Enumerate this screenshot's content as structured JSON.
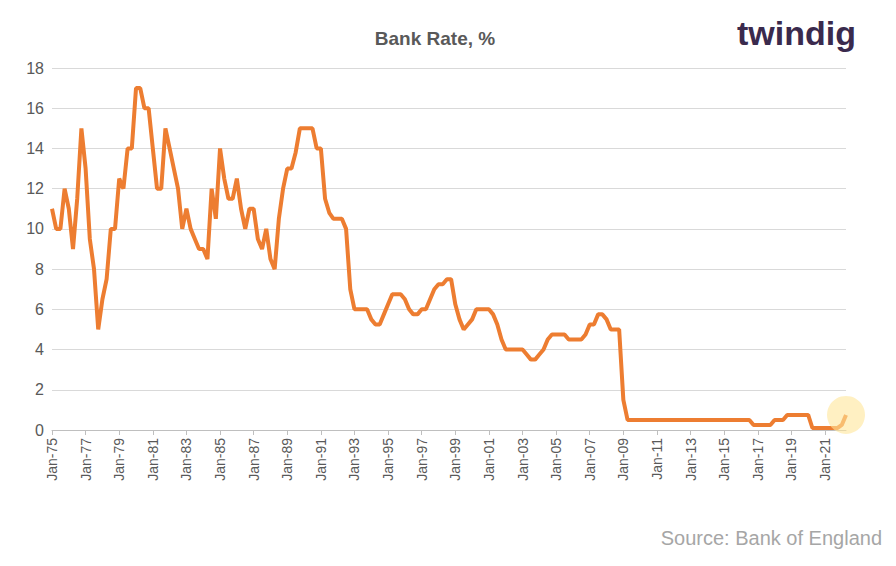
{
  "chart_data": {
    "type": "line",
    "title": "Bank Rate, %",
    "categories": [
      "Jan-75",
      null,
      null,
      null,
      null,
      null,
      null,
      null,
      "Jan-77",
      null,
      null,
      null,
      null,
      null,
      null,
      null,
      "Jan-79",
      null,
      null,
      null,
      null,
      null,
      null,
      null,
      "Jan-81",
      null,
      null,
      null,
      null,
      null,
      null,
      null,
      "Jan-83",
      null,
      null,
      null,
      null,
      null,
      null,
      null,
      "Jan-85",
      null,
      null,
      null,
      null,
      null,
      null,
      null,
      "Jan-87",
      null,
      null,
      null,
      null,
      null,
      null,
      null,
      "Jan-89",
      null,
      null,
      null,
      null,
      null,
      null,
      null,
      "Jan-91",
      null,
      null,
      null,
      null,
      null,
      null,
      null,
      "Jan-93",
      null,
      null,
      null,
      null,
      null,
      null,
      null,
      "Jan-95",
      null,
      null,
      null,
      null,
      null,
      null,
      null,
      "Jan-97",
      null,
      null,
      null,
      null,
      null,
      null,
      null,
      "Jan-99",
      null,
      null,
      null,
      null,
      null,
      null,
      null,
      "Jan-01",
      null,
      null,
      null,
      null,
      null,
      null,
      null,
      "Jan-03",
      null,
      null,
      null,
      null,
      null,
      null,
      null,
      "Jan-05",
      null,
      null,
      null,
      null,
      null,
      null,
      null,
      "Jan-07",
      null,
      null,
      null,
      null,
      null,
      null,
      null,
      "Jan-09",
      null,
      null,
      null,
      null,
      null,
      null,
      null,
      "Jan-11",
      null,
      null,
      null,
      null,
      null,
      null,
      null,
      "Jan-13",
      null,
      null,
      null,
      null,
      null,
      null,
      null,
      "Jan-15",
      null,
      null,
      null,
      null,
      null,
      null,
      null,
      "Jan-17",
      null,
      null,
      null,
      null,
      null,
      null,
      null,
      "Jan-19",
      null,
      null,
      null,
      null,
      null,
      null,
      null,
      "Jan-21",
      null,
      null,
      null,
      null,
      null
    ],
    "values": [
      11.0,
      10.0,
      10.0,
      12.0,
      11.0,
      9.0,
      11.5,
      15.0,
      13.0,
      9.5,
      8.0,
      5.0,
      6.5,
      7.5,
      10.0,
      10.0,
      12.5,
      12.0,
      14.0,
      14.0,
      17.0,
      17.0,
      16.0,
      16.0,
      14.0,
      12.0,
      12.0,
      15.0,
      14.0,
      13.0,
      12.0,
      10.0,
      11.0,
      10.0,
      9.5,
      9.0,
      9.0,
      8.5,
      12.0,
      10.5,
      14.0,
      12.5,
      11.5,
      11.5,
      12.5,
      11.0,
      10.0,
      11.0,
      11.0,
      9.5,
      9.0,
      10.0,
      8.5,
      8.0,
      10.5,
      12.0,
      13.0,
      13.0,
      13.8,
      15.0,
      15.0,
      15.0,
      15.0,
      14.0,
      14.0,
      11.5,
      10.8,
      10.5,
      10.5,
      10.5,
      10.0,
      7.0,
      6.0,
      6.0,
      6.0,
      6.0,
      5.5,
      5.25,
      5.25,
      5.75,
      6.25,
      6.75,
      6.75,
      6.75,
      6.5,
      6.0,
      5.75,
      5.75,
      6.0,
      6.0,
      6.5,
      7.0,
      7.25,
      7.25,
      7.5,
      7.5,
      6.25,
      5.5,
      5.0,
      5.25,
      5.5,
      6.0,
      6.0,
      6.0,
      6.0,
      5.75,
      5.25,
      4.5,
      4.0,
      4.0,
      4.0,
      4.0,
      4.0,
      3.75,
      3.5,
      3.5,
      3.75,
      4.0,
      4.5,
      4.75,
      4.75,
      4.75,
      4.75,
      4.5,
      4.5,
      4.5,
      4.5,
      4.75,
      5.25,
      5.25,
      5.75,
      5.75,
      5.5,
      5.0,
      5.0,
      5.0,
      1.5,
      0.5,
      0.5,
      0.5,
      0.5,
      0.5,
      0.5,
      0.5,
      0.5,
      0.5,
      0.5,
      0.5,
      0.5,
      0.5,
      0.5,
      0.5,
      0.5,
      0.5,
      0.5,
      0.5,
      0.5,
      0.5,
      0.5,
      0.5,
      0.5,
      0.5,
      0.5,
      0.5,
      0.5,
      0.5,
      0.5,
      0.25,
      0.25,
      0.25,
      0.25,
      0.25,
      0.5,
      0.5,
      0.5,
      0.75,
      0.75,
      0.75,
      0.75,
      0.75,
      0.75,
      0.1,
      0.1,
      0.1,
      0.1,
      0.1,
      0.1,
      0.1,
      0.25,
      0.75
    ],
    "color": "#ED7D31",
    "ylim": [
      0,
      18
    ],
    "yticks": [
      0,
      2,
      4,
      6,
      8,
      10,
      12,
      14,
      16,
      18
    ],
    "grid": true,
    "annotations": [
      "twindig",
      "Source: Bank of England"
    ]
  }
}
